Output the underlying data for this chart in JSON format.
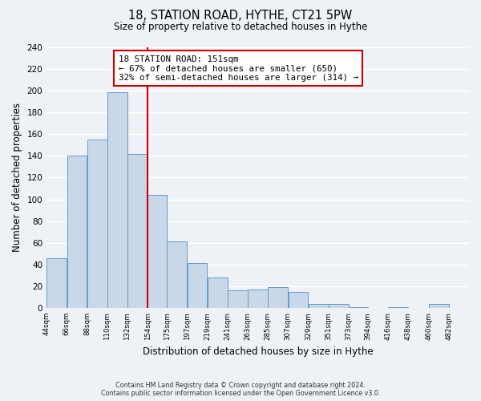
{
  "title": "18, STATION ROAD, HYTHE, CT21 5PW",
  "subtitle": "Size of property relative to detached houses in Hythe",
  "xlabel": "Distribution of detached houses by size in Hythe",
  "ylabel": "Number of detached properties",
  "bar_left_edges": [
    44,
    66,
    88,
    110,
    132,
    154,
    175,
    197,
    219,
    241,
    263,
    285,
    307,
    329,
    351,
    373,
    394,
    416,
    438,
    460
  ],
  "bar_widths": [
    22,
    22,
    22,
    22,
    22,
    21,
    22,
    22,
    22,
    22,
    22,
    22,
    22,
    22,
    22,
    21,
    22,
    22,
    22,
    22
  ],
  "bar_heights": [
    46,
    140,
    155,
    199,
    142,
    104,
    61,
    41,
    28,
    16,
    17,
    19,
    15,
    4,
    4,
    1,
    0,
    1,
    0,
    4
  ],
  "tick_labels": [
    "44sqm",
    "66sqm",
    "88sqm",
    "110sqm",
    "132sqm",
    "154sqm",
    "175sqm",
    "197sqm",
    "219sqm",
    "241sqm",
    "263sqm",
    "285sqm",
    "307sqm",
    "329sqm",
    "351sqm",
    "373sqm",
    "394sqm",
    "416sqm",
    "438sqm",
    "460sqm",
    "482sqm"
  ],
  "tick_positions": [
    44,
    66,
    88,
    110,
    132,
    154,
    175,
    197,
    219,
    241,
    263,
    285,
    307,
    329,
    351,
    373,
    394,
    416,
    438,
    460,
    482
  ],
  "bar_color": "#c8d8e8",
  "bar_edge_color": "#6699cc",
  "property_line_x": 154,
  "property_line_color": "#cc0000",
  "annotation_title": "18 STATION ROAD: 151sqm",
  "annotation_line1": "← 67% of detached houses are smaller (650)",
  "annotation_line2": "32% of semi-detached houses are larger (314) →",
  "annotation_box_color": "#ffffff",
  "annotation_box_edge_color": "#cc0000",
  "ylim": [
    0,
    240
  ],
  "yticks": [
    0,
    20,
    40,
    60,
    80,
    100,
    120,
    140,
    160,
    180,
    200,
    220,
    240
  ],
  "footer_line1": "Contains HM Land Registry data © Crown copyright and database right 2024.",
  "footer_line2": "Contains public sector information licensed under the Open Government Licence v3.0.",
  "background_color": "#eef2f7",
  "grid_color": "#ffffff"
}
